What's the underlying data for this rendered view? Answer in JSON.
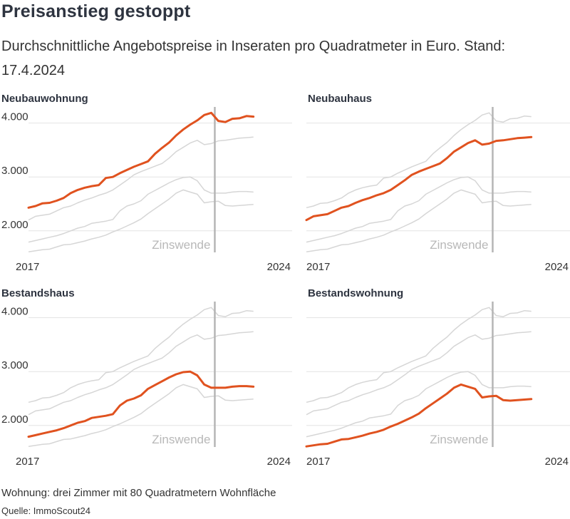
{
  "title": "Preisanstieg gestoppt",
  "subtitle": "Durchschnittliche Angebotspreise in Inseraten pro Quadratmeter in Euro. Stand: 17.4.2024",
  "footer": {
    "note": "Wohnung: drei Zimmer mit 80 Quadratmetern Wohnfläche",
    "source": "Quelle: ImmoScout24"
  },
  "colors": {
    "highlight": "#e0521f",
    "context": "#d6d6d6",
    "grid": "#e3e3e3",
    "marker": "#b5b5b5"
  },
  "chart_data": {
    "type": "line",
    "x_start": 2017,
    "x_end": 2024.5,
    "ylim": [
      1600,
      4300
    ],
    "ticks": [
      2000,
      3000,
      4000
    ],
    "tick_labels": [
      "2.000",
      "3.000",
      "4.000"
    ],
    "x_tick_labels": [
      "2017",
      "2024"
    ],
    "annotation": {
      "label": "Zinswende",
      "x": 2022.3
    },
    "panels": [
      {
        "title": "Neubauwohnung",
        "series_index": 0,
        "show_y_labels": true
      },
      {
        "title": "Neubauhaus",
        "series_index": 1,
        "show_y_labels": false
      },
      {
        "title": "Bestandshaus",
        "series_index": 2,
        "show_y_labels": true
      },
      {
        "title": "Bestandswohnung",
        "series_index": 3,
        "show_y_labels": false
      }
    ],
    "series": [
      {
        "name": "Neubauwohnung",
        "values": [
          [
            2017,
            2430
          ],
          [
            2017.2,
            2460
          ],
          [
            2017.4,
            2510
          ],
          [
            2017.6,
            2520
          ],
          [
            2017.8,
            2560
          ],
          [
            2018,
            2610
          ],
          [
            2018.2,
            2700
          ],
          [
            2018.4,
            2760
          ],
          [
            2018.6,
            2800
          ],
          [
            2018.8,
            2830
          ],
          [
            2019,
            2850
          ],
          [
            2019.2,
            2980
          ],
          [
            2019.4,
            3000
          ],
          [
            2019.6,
            3070
          ],
          [
            2019.8,
            3130
          ],
          [
            2020,
            3190
          ],
          [
            2020.2,
            3240
          ],
          [
            2020.4,
            3290
          ],
          [
            2020.6,
            3430
          ],
          [
            2020.8,
            3540
          ],
          [
            2021,
            3640
          ],
          [
            2021.2,
            3770
          ],
          [
            2021.4,
            3880
          ],
          [
            2021.6,
            3970
          ],
          [
            2021.8,
            4050
          ],
          [
            2022,
            4150
          ],
          [
            2022.2,
            4190
          ],
          [
            2022.4,
            4040
          ],
          [
            2022.6,
            4020
          ],
          [
            2022.8,
            4080
          ],
          [
            2023,
            4090
          ],
          [
            2023.2,
            4130
          ],
          [
            2023.4,
            4120
          ]
        ]
      },
      {
        "name": "Neubauhaus",
        "values": [
          [
            2017,
            2200
          ],
          [
            2017.2,
            2270
          ],
          [
            2017.4,
            2290
          ],
          [
            2017.6,
            2310
          ],
          [
            2017.8,
            2370
          ],
          [
            2018,
            2430
          ],
          [
            2018.2,
            2460
          ],
          [
            2018.4,
            2520
          ],
          [
            2018.6,
            2570
          ],
          [
            2018.8,
            2610
          ],
          [
            2019,
            2660
          ],
          [
            2019.2,
            2700
          ],
          [
            2019.4,
            2760
          ],
          [
            2019.6,
            2850
          ],
          [
            2019.8,
            2940
          ],
          [
            2020,
            3040
          ],
          [
            2020.2,
            3100
          ],
          [
            2020.4,
            3150
          ],
          [
            2020.6,
            3200
          ],
          [
            2020.8,
            3250
          ],
          [
            2021,
            3350
          ],
          [
            2021.2,
            3470
          ],
          [
            2021.4,
            3550
          ],
          [
            2021.6,
            3630
          ],
          [
            2021.8,
            3680
          ],
          [
            2022,
            3600
          ],
          [
            2022.2,
            3620
          ],
          [
            2022.4,
            3670
          ],
          [
            2022.6,
            3680
          ],
          [
            2022.8,
            3700
          ],
          [
            2023,
            3720
          ],
          [
            2023.2,
            3730
          ],
          [
            2023.4,
            3740
          ]
        ]
      },
      {
        "name": "Bestandshaus",
        "values": [
          [
            2017,
            1790
          ],
          [
            2017.2,
            1820
          ],
          [
            2017.4,
            1850
          ],
          [
            2017.6,
            1880
          ],
          [
            2017.8,
            1910
          ],
          [
            2018,
            1950
          ],
          [
            2018.2,
            2000
          ],
          [
            2018.4,
            2050
          ],
          [
            2018.6,
            2080
          ],
          [
            2018.8,
            2140
          ],
          [
            2019,
            2160
          ],
          [
            2019.2,
            2180
          ],
          [
            2019.4,
            2210
          ],
          [
            2019.6,
            2370
          ],
          [
            2019.8,
            2460
          ],
          [
            2020,
            2500
          ],
          [
            2020.2,
            2560
          ],
          [
            2020.4,
            2680
          ],
          [
            2020.6,
            2750
          ],
          [
            2020.8,
            2820
          ],
          [
            2021,
            2890
          ],
          [
            2021.2,
            2950
          ],
          [
            2021.4,
            2990
          ],
          [
            2021.6,
            3000
          ],
          [
            2021.8,
            2930
          ],
          [
            2022,
            2760
          ],
          [
            2022.2,
            2700
          ],
          [
            2022.4,
            2700
          ],
          [
            2022.6,
            2700
          ],
          [
            2022.8,
            2720
          ],
          [
            2023,
            2730
          ],
          [
            2023.2,
            2730
          ],
          [
            2023.4,
            2720
          ]
        ]
      },
      {
        "name": "Bestandswohnung",
        "values": [
          [
            2017,
            1610
          ],
          [
            2017.2,
            1630
          ],
          [
            2017.4,
            1650
          ],
          [
            2017.6,
            1660
          ],
          [
            2017.8,
            1700
          ],
          [
            2018,
            1740
          ],
          [
            2018.2,
            1750
          ],
          [
            2018.4,
            1780
          ],
          [
            2018.6,
            1810
          ],
          [
            2018.8,
            1850
          ],
          [
            2019,
            1880
          ],
          [
            2019.2,
            1920
          ],
          [
            2019.4,
            1980
          ],
          [
            2019.6,
            2030
          ],
          [
            2019.8,
            2090
          ],
          [
            2020,
            2150
          ],
          [
            2020.2,
            2220
          ],
          [
            2020.4,
            2320
          ],
          [
            2020.6,
            2410
          ],
          [
            2020.8,
            2500
          ],
          [
            2021,
            2590
          ],
          [
            2021.2,
            2700
          ],
          [
            2021.4,
            2760
          ],
          [
            2021.6,
            2720
          ],
          [
            2021.8,
            2680
          ],
          [
            2022,
            2520
          ],
          [
            2022.2,
            2540
          ],
          [
            2022.4,
            2550
          ],
          [
            2022.6,
            2470
          ],
          [
            2022.8,
            2460
          ],
          [
            2023,
            2470
          ],
          [
            2023.2,
            2480
          ],
          [
            2023.4,
            2490
          ]
        ]
      }
    ]
  }
}
